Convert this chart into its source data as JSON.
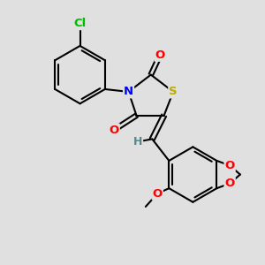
{
  "background_color": "#e0e0e0",
  "bond_color": "#000000",
  "bond_width": 1.5,
  "atom_colors": {
    "Cl": "#00bb00",
    "N": "#0000ff",
    "O": "#ff0000",
    "S": "#bbaa00",
    "H": "#558888",
    "C": "#000000"
  },
  "figsize": [
    3.0,
    3.0
  ],
  "dpi": 100,
  "xlim": [
    0,
    10
  ],
  "ylim": [
    0,
    10
  ]
}
